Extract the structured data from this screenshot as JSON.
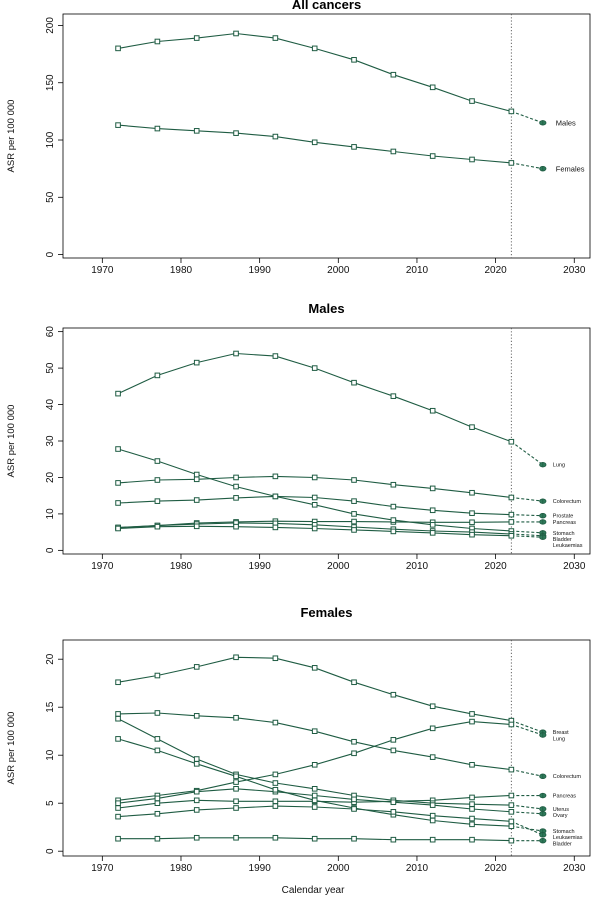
{
  "figure": {
    "xlabel": "Calendar year",
    "line_color": "#1f5c43",
    "marker_fill": "#ffffff"
  },
  "chart_data": [
    {
      "type": "line",
      "title": "All cancers",
      "ylabel": "ASR per 100 000",
      "xlim": [
        1965,
        2032
      ],
      "ylim": [
        -3,
        210
      ],
      "xticks": [
        1970,
        1980,
        1990,
        2000,
        2010,
        2020,
        2030
      ],
      "yticks": [
        0,
        50,
        100,
        150,
        200
      ],
      "x": [
        1972,
        1977,
        1982,
        1987,
        1992,
        1997,
        2002,
        2007,
        2012,
        2017,
        2022
      ],
      "projection_year": 2026,
      "vline_x": 2022,
      "series": [
        {
          "name": "Males",
          "values": [
            180,
            186,
            189,
            193,
            189,
            180,
            170,
            157,
            146,
            134,
            125
          ],
          "projection": 115
        },
        {
          "name": "Females",
          "values": [
            113,
            110,
            108,
            106,
            103,
            98,
            94,
            90,
            86,
            83,
            80
          ],
          "projection": 75
        }
      ]
    },
    {
      "type": "line",
      "title": "Males",
      "ylabel": "ASR per 100 000",
      "xlim": [
        1965,
        2032
      ],
      "ylim": [
        -1,
        61
      ],
      "xticks": [
        1970,
        1980,
        1990,
        2000,
        2010,
        2020,
        2030
      ],
      "yticks": [
        0,
        10,
        20,
        30,
        40,
        50,
        60
      ],
      "x": [
        1972,
        1977,
        1982,
        1987,
        1992,
        1997,
        2002,
        2007,
        2012,
        2017,
        2022
      ],
      "projection_year": 2026,
      "vline_x": 2022,
      "series": [
        {
          "name": "Lung",
          "values": [
            43,
            48,
            51.5,
            54,
            53.3,
            50,
            46,
            42.3,
            38.3,
            33.8,
            29.8
          ],
          "projection": 23.5
        },
        {
          "name": "Colorectum",
          "values": [
            18.5,
            19.3,
            19.5,
            20,
            20.3,
            20,
            19.3,
            18,
            17,
            15.8,
            14.5
          ],
          "projection": 13.5
        },
        {
          "name": "Prostate",
          "values": [
            13,
            13.5,
            13.8,
            14.4,
            14.8,
            14.5,
            13.5,
            12,
            11,
            10.2,
            9.8
          ],
          "projection": 9.5
        },
        {
          "name": "Pancreas",
          "values": [
            6.2,
            6.8,
            7.5,
            7.8,
            8,
            7.9,
            7.9,
            7.8,
            7.7,
            7.7,
            7.8
          ],
          "projection": 7.8
        },
        {
          "name": "Stomach",
          "values": [
            27.8,
            24.5,
            20.8,
            17.5,
            14.8,
            12.5,
            10,
            8.3,
            7,
            6,
            5.3
          ],
          "projection": 4.8
        },
        {
          "name": "Bladder",
          "values": [
            6.3,
            6.8,
            7.2,
            7.5,
            7.4,
            7,
            6.4,
            5.8,
            5.3,
            5,
            4.5
          ],
          "projection": 4
        },
        {
          "name": "Leukaemias",
          "values": [
            6,
            6.5,
            6.6,
            6.5,
            6.3,
            6,
            5.6,
            5.2,
            4.8,
            4.3,
            4
          ],
          "projection": 3.6
        }
      ]
    },
    {
      "type": "line",
      "title": "Females",
      "ylabel": "ASR per 100 000",
      "xlim": [
        1965,
        2032
      ],
      "ylim": [
        -0.5,
        22
      ],
      "xticks": [
        1970,
        1980,
        1990,
        2000,
        2010,
        2020,
        2030
      ],
      "yticks": [
        0,
        5,
        10,
        15,
        20
      ],
      "x": [
        1972,
        1977,
        1982,
        1987,
        1992,
        1997,
        2002,
        2007,
        2012,
        2017,
        2022
      ],
      "projection_year": 2026,
      "vline_x": 2022,
      "series": [
        {
          "name": "Breast",
          "values": [
            17.6,
            18.3,
            19.2,
            20.2,
            20.1,
            19.1,
            17.6,
            16.3,
            15.1,
            14.3,
            13.6
          ],
          "projection": 12.4
        },
        {
          "name": "Lung",
          "values": [
            5.3,
            5.8,
            6.3,
            7.2,
            8,
            9,
            10.2,
            11.6,
            12.8,
            13.5,
            13.2
          ],
          "projection": 12.1
        },
        {
          "name": "Colorectum",
          "values": [
            14.3,
            14.4,
            14.1,
            13.9,
            13.4,
            12.5,
            11.4,
            10.5,
            9.8,
            9,
            8.5
          ],
          "projection": 7.8
        },
        {
          "name": "Pancreas",
          "values": [
            4.5,
            5,
            5.3,
            5.2,
            5.2,
            5.2,
            5.1,
            5.2,
            5.3,
            5.6,
            5.8
          ],
          "projection": 5.8
        },
        {
          "name": "Uterus",
          "values": [
            13.8,
            11.7,
            9.6,
            8,
            7.1,
            6.5,
            5.8,
            5.3,
            5,
            4.9,
            4.8
          ],
          "projection": 4.4
        },
        {
          "name": "Ovary",
          "values": [
            5,
            5.5,
            6.2,
            6.5,
            6.2,
            5.8,
            5.4,
            5.1,
            4.8,
            4.4,
            4.1
          ],
          "projection": 3.9
        },
        {
          "name": "Stomach",
          "values": [
            11.7,
            10.5,
            9.1,
            7.8,
            6.4,
            5.3,
            4.5,
            3.8,
            3.2,
            2.8,
            2.6
          ],
          "projection": 2.1
        },
        {
          "name": "Leukaemias",
          "values": [
            3.6,
            3.9,
            4.3,
            4.5,
            4.7,
            4.6,
            4.4,
            4.1,
            3.7,
            3.4,
            3.1
          ],
          "projection": 1.7
        },
        {
          "name": "Bladder",
          "values": [
            1.3,
            1.3,
            1.4,
            1.4,
            1.4,
            1.3,
            1.3,
            1.2,
            1.2,
            1.2,
            1.1
          ],
          "projection": 1.1
        }
      ]
    }
  ]
}
